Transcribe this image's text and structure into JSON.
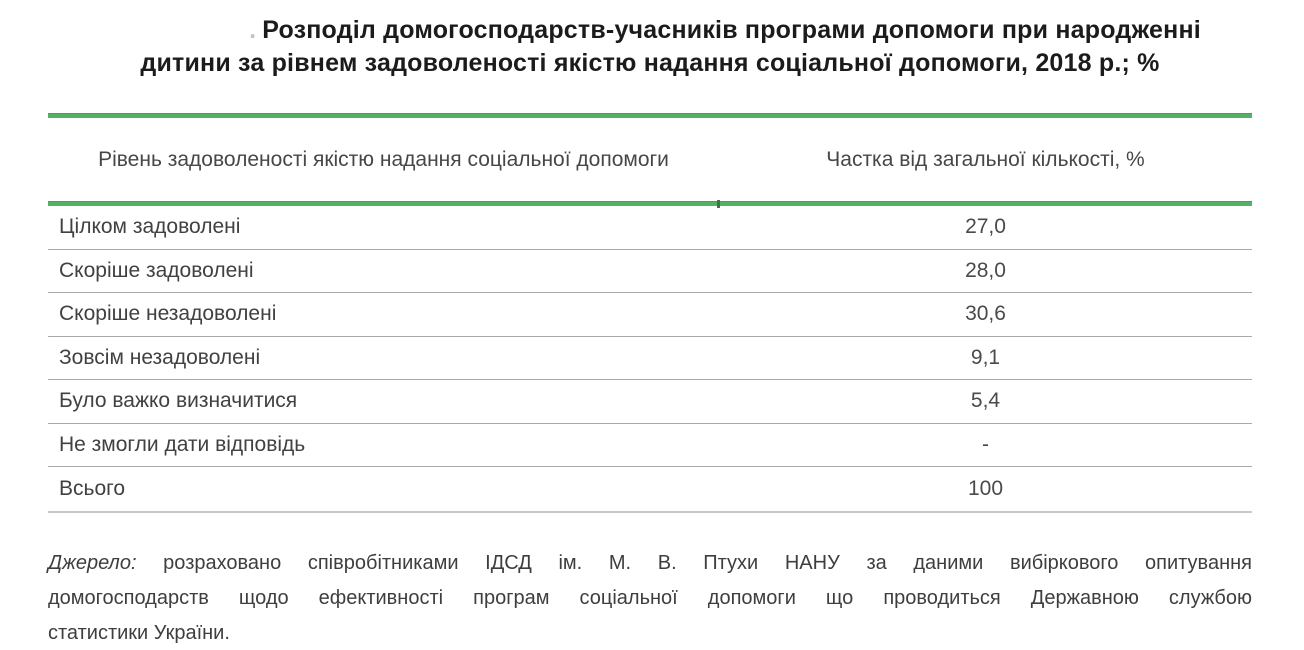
{
  "title": {
    "prefix": ".",
    "line1": "Розподіл домогосподарств-учасників програми допомоги при народженні",
    "line2": "дитини за рівнем задоволеності якістю надання соціальної допомоги, 2018 р.; %"
  },
  "table": {
    "columns": {
      "level": "Рівень задоволеності якістю надання соціальної допомоги",
      "share": "Частка від загальної кількості, %"
    },
    "rows": [
      {
        "label": "Цілком задоволені",
        "value": "27,0"
      },
      {
        "label": "Скоріше задоволені",
        "value": "28,0"
      },
      {
        "label": "Скоріше незадоволені",
        "value": "30,6"
      },
      {
        "label": "Зовсім незадоволені",
        "value": "9,1"
      },
      {
        "label": "Було важко визначитися",
        "value": "5,4"
      },
      {
        "label": "Не змогли дати відповідь",
        "value": "-"
      },
      {
        "label": "Всього",
        "value": "100"
      }
    ]
  },
  "source": {
    "label": "Джерело:",
    "line1_text": "розраховано співробітниками ІДСД ім. М. В. Птухи НАНУ за даними вибіркового опитування",
    "line2_text": "домогосподарств щодо ефективності програм соціальної допомоги що проводиться Державною службою",
    "line3_text": "статистики України.",
    "full_text": "Джерело: розраховано співробітниками ІДСД ім. М. В. Птухи НАНУ за даними вибіркового опитування домогосподарств щодо ефективності програм соціальної допомоги що проводиться Державною службою статистики України."
  },
  "colors": {
    "accent_green": "#55b164",
    "row_separator": "#a9a9a9",
    "bottom_rule": "#c8c8c8",
    "title_text": "#1b1b1b",
    "body_text": "#414141"
  }
}
